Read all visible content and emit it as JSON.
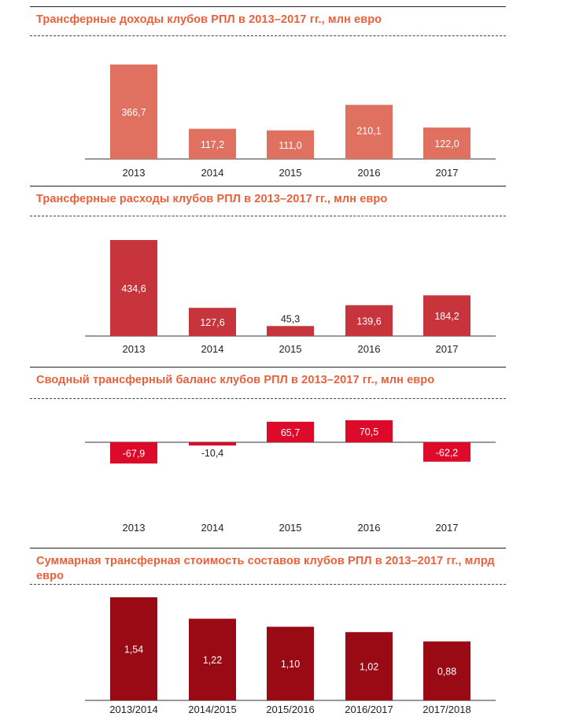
{
  "chart_data": [
    {
      "type": "bar",
      "title": "Трансферные доходы клубов РПЛ в 2013–2017 гг., млн евро",
      "categories": [
        "2013",
        "2014",
        "2015",
        "2016",
        "2017"
      ],
      "values": [
        366.7,
        117.2,
        111.0,
        210.1,
        122.0
      ],
      "labels": [
        "366,7",
        "117,2",
        "111,0",
        "210,1",
        "122,0"
      ],
      "color": "#e07060",
      "grid": false
    },
    {
      "type": "bar",
      "title": "Трансферные расходы клубов РПЛ в 2013–2017 гг., млн евро",
      "categories": [
        "2013",
        "2014",
        "2015",
        "2016",
        "2017"
      ],
      "values": [
        434.6,
        127.6,
        45.3,
        139.6,
        184.2
      ],
      "labels": [
        "434,6",
        "127,6",
        "45,3",
        "139,6",
        "184,2"
      ],
      "color": "#c8343c",
      "grid": false
    },
    {
      "type": "bar",
      "title": "Сводный трансферный баланс клубов РПЛ в 2013–2017 гг., млн евро",
      "categories": [
        "2013",
        "2014",
        "2015",
        "2016",
        "2017"
      ],
      "values": [
        -67.9,
        -10.4,
        65.7,
        70.5,
        -62.2
      ],
      "labels": [
        "-67,9",
        "-10,4",
        "65,7",
        "70,5",
        "-62,2"
      ],
      "color": "#dd0a2a",
      "grid": false
    },
    {
      "type": "bar",
      "title": "Суммарная трансферная стоимость составов клубов РПЛ в 2013–2017 гг., млрд евро",
      "categories": [
        "2013/2014",
        "2014/2015",
        "2015/2016",
        "2016/2017",
        "2017/2018"
      ],
      "values": [
        1.54,
        1.22,
        1.1,
        1.02,
        0.88
      ],
      "labels": [
        "1,54",
        "1,22",
        "1,10",
        "1,02",
        "0,88"
      ],
      "color": "#9a0a14",
      "grid": false
    }
  ]
}
